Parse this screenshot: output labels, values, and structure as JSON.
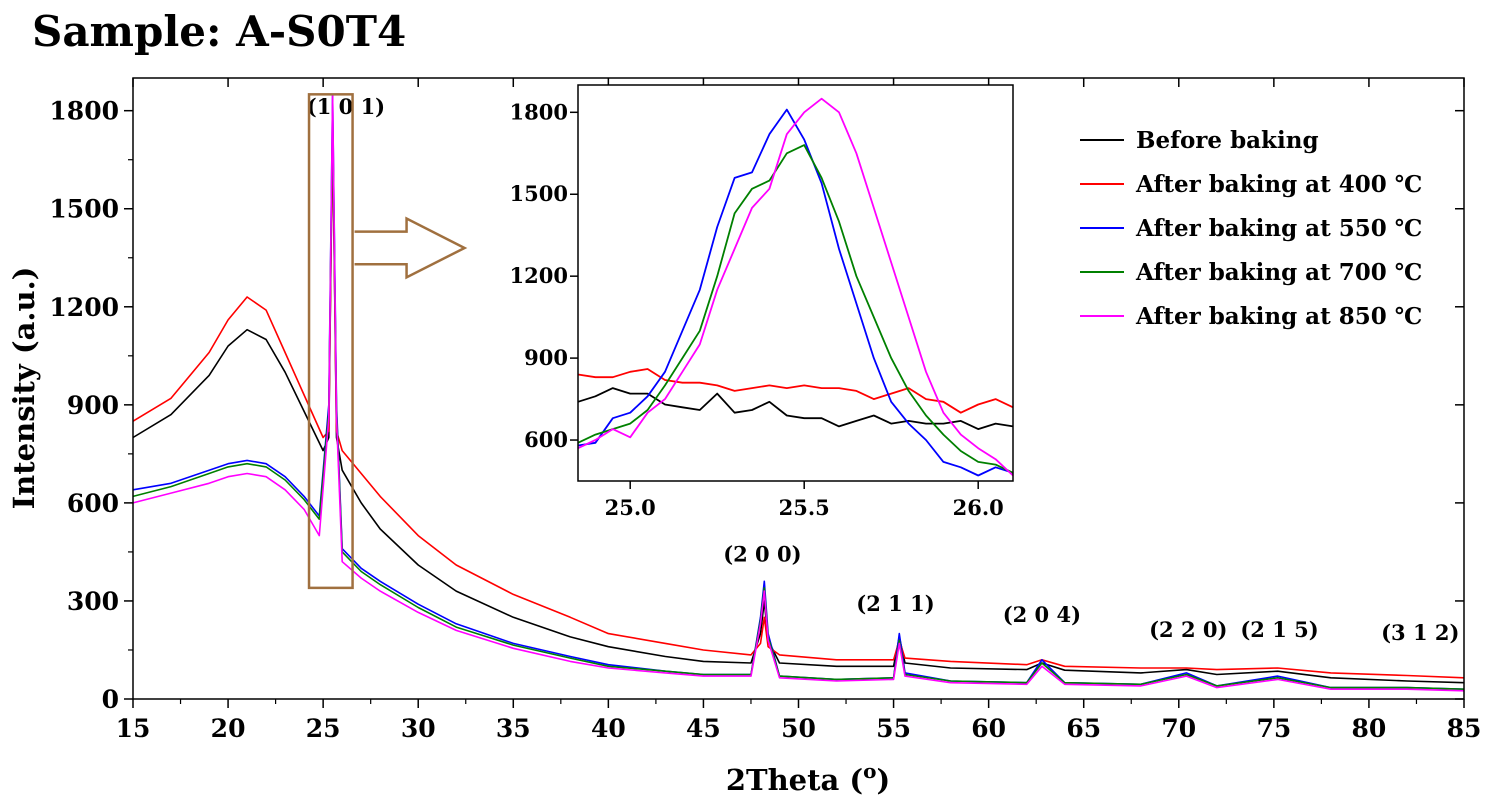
{
  "chart_data": [
    {
      "type": "line",
      "title": "Sample: A-S0T4",
      "xlabel": "2Theta (",
      "xlabel_superscript": "o",
      "xlabel_suffix": ")",
      "ylabel": "Intensity (a.u.)",
      "xlim": [
        15,
        85
      ],
      "ylim": [
        0,
        1900
      ],
      "x_ticks": [
        15,
        20,
        25,
        30,
        35,
        40,
        45,
        50,
        55,
        60,
        65,
        70,
        75,
        80,
        85
      ],
      "y_ticks": [
        0,
        300,
        600,
        900,
        1200,
        1500,
        1800
      ],
      "legend": {
        "placement": "top-right",
        "entries": [
          {
            "label": "Before baking",
            "color": "#000000"
          },
          {
            "label": "After baking at 400 ℃",
            "color": "#ff0000"
          },
          {
            "label": "After baking at 550 ℃",
            "color": "#0000ff"
          },
          {
            "label": "After baking at 700 ℃",
            "color": "#008000"
          },
          {
            "label": "After baking at 850 ℃",
            "color": "#ff00ff"
          }
        ]
      },
      "annotations": [
        {
          "text": "(1 0 1)",
          "x": 26.2,
          "y": 1790
        },
        {
          "text": "(2 0 0)",
          "x": 48.1,
          "y": 420
        },
        {
          "text": "(2 1 1)",
          "x": 55.1,
          "y": 270
        },
        {
          "text": "(2 0 4)",
          "x": 62.8,
          "y": 235
        },
        {
          "text": "(2 2 0)",
          "x": 70.5,
          "y": 190
        },
        {
          "text": "(2 1 5)",
          "x": 75.3,
          "y": 190
        },
        {
          "text": "(3 1 2)",
          "x": 82.7,
          "y": 180
        }
      ],
      "highlight_box": {
        "x_range": [
          24.1,
          26.6
        ],
        "y_range": [
          340,
          1850
        ]
      },
      "series": [
        {
          "name": "Before baking",
          "color": "#000000",
          "x": [
            15,
            17,
            19,
            20,
            21,
            22,
            23,
            24,
            25,
            25.3,
            25.5,
            25.7,
            26,
            27,
            28,
            30,
            32,
            35,
            38,
            40,
            43,
            45,
            47.5,
            48.0,
            48.2,
            48.4,
            49,
            52,
            55.0,
            55.3,
            55.6,
            58,
            62,
            62.8,
            64,
            68,
            70.4,
            72,
            75.2,
            78,
            82,
            85
          ],
          "y": [
            800,
            870,
            990,
            1080,
            1130,
            1100,
            1000,
            880,
            760,
            800,
            1750,
            800,
            700,
            600,
            520,
            410,
            330,
            250,
            190,
            160,
            130,
            115,
            110,
            200,
            300,
            180,
            110,
            100,
            100,
            190,
            110,
            95,
            90,
            110,
            88,
            80,
            90,
            75,
            85,
            65,
            55,
            50
          ]
        },
        {
          "name": "After baking at 400 ℃",
          "color": "#ff0000",
          "x": [
            15,
            17,
            19,
            20,
            21,
            22,
            23,
            24,
            25,
            25.3,
            25.5,
            25.7,
            26,
            27,
            28,
            30,
            32,
            35,
            38,
            40,
            43,
            45,
            47.5,
            48.0,
            48.2,
            48.4,
            49,
            52,
            55.0,
            55.3,
            55.6,
            58,
            62,
            62.8,
            64,
            68,
            70.4,
            72,
            75.2,
            78,
            82,
            85
          ],
          "y": [
            850,
            920,
            1060,
            1160,
            1230,
            1190,
            1060,
            930,
            800,
            820,
            1760,
            820,
            760,
            690,
            620,
            500,
            410,
            320,
            250,
            200,
            170,
            150,
            135,
            170,
            250,
            160,
            135,
            120,
            120,
            180,
            125,
            115,
            105,
            120,
            100,
            95,
            95,
            90,
            95,
            80,
            72,
            65
          ]
        },
        {
          "name": "After baking at 550 ℃",
          "color": "#0000ff",
          "x": [
            15,
            17,
            19,
            20,
            21,
            22,
            23,
            24,
            24.8,
            25.3,
            25.5,
            25.7,
            26,
            27,
            28,
            30,
            32,
            35,
            38,
            40,
            43,
            45,
            47.5,
            48.0,
            48.2,
            48.4,
            49,
            52,
            55.0,
            55.3,
            55.6,
            58,
            62,
            62.8,
            64,
            68,
            70.4,
            72,
            75.2,
            78,
            82,
            85
          ],
          "y": [
            640,
            660,
            700,
            720,
            730,
            720,
            680,
            620,
            560,
            900,
            1850,
            900,
            460,
            400,
            360,
            290,
            230,
            170,
            130,
            105,
            85,
            75,
            75,
            250,
            360,
            200,
            70,
            60,
            65,
            200,
            80,
            55,
            50,
            120,
            50,
            45,
            80,
            40,
            70,
            35,
            35,
            30
          ]
        },
        {
          "name": "After baking at 700 ℃",
          "color": "#008000",
          "x": [
            15,
            17,
            19,
            20,
            21,
            22,
            23,
            24,
            24.8,
            25.3,
            25.5,
            25.7,
            26,
            27,
            28,
            30,
            32,
            35,
            38,
            40,
            43,
            45,
            47.5,
            48.0,
            48.2,
            48.4,
            49,
            52,
            55.0,
            55.3,
            55.6,
            58,
            62,
            62.8,
            64,
            68,
            70.4,
            72,
            75.2,
            78,
            82,
            85
          ],
          "y": [
            620,
            650,
            690,
            710,
            720,
            710,
            670,
            610,
            550,
            880,
            1780,
            880,
            450,
            390,
            350,
            280,
            220,
            165,
            125,
            100,
            85,
            75,
            75,
            240,
            340,
            190,
            70,
            60,
            65,
            180,
            75,
            55,
            50,
            110,
            50,
            45,
            75,
            40,
            65,
            35,
            35,
            30
          ]
        },
        {
          "name": "After baking at 850 ℃",
          "color": "#ff00ff",
          "x": [
            15,
            17,
            19,
            20,
            21,
            22,
            23,
            24,
            24.8,
            25.3,
            25.5,
            25.7,
            26,
            27,
            28,
            30,
            32,
            35,
            38,
            40,
            43,
            45,
            47.5,
            48.0,
            48.2,
            48.4,
            49,
            52,
            55.0,
            55.3,
            55.6,
            58,
            62,
            62.8,
            64,
            68,
            70.4,
            72,
            75.2,
            78,
            82,
            85
          ],
          "y": [
            600,
            630,
            660,
            680,
            690,
            680,
            640,
            580,
            500,
            860,
            1850,
            860,
            420,
            370,
            330,
            265,
            210,
            155,
            115,
            95,
            80,
            70,
            70,
            230,
            330,
            180,
            65,
            55,
            60,
            170,
            70,
            50,
            45,
            100,
            45,
            40,
            70,
            35,
            60,
            30,
            30,
            25
          ]
        }
      ]
    },
    {
      "type": "line",
      "title": "",
      "xlabel": "",
      "ylabel": "",
      "xlim": [
        24.85,
        26.1
      ],
      "ylim": [
        450,
        1900
      ],
      "x_ticks": [
        25.0,
        25.5,
        26.0
      ],
      "x_tick_labels": [
        "25.0",
        "25.5",
        "26.0"
      ],
      "y_ticks": [
        600,
        900,
        1200,
        1500,
        1800
      ],
      "series": [
        {
          "name": "Before baking",
          "color": "#000000",
          "x": [
            24.85,
            24.9,
            24.95,
            25.0,
            25.05,
            25.1,
            25.15,
            25.2,
            25.25,
            25.3,
            25.35,
            25.4,
            25.45,
            25.5,
            25.55,
            25.6,
            25.65,
            25.7,
            25.75,
            25.8,
            25.85,
            25.9,
            25.95,
            26.0,
            26.05,
            26.1
          ],
          "y": [
            740,
            760,
            790,
            770,
            770,
            730,
            720,
            710,
            770,
            700,
            710,
            740,
            690,
            680,
            680,
            650,
            670,
            690,
            660,
            670,
            660,
            660,
            670,
            640,
            660,
            650
          ]
        },
        {
          "name": "After baking at 400 ℃",
          "color": "#ff0000",
          "x": [
            24.85,
            24.9,
            24.95,
            25.0,
            25.05,
            25.1,
            25.15,
            25.2,
            25.25,
            25.3,
            25.35,
            25.4,
            25.45,
            25.5,
            25.55,
            25.6,
            25.65,
            25.7,
            25.75,
            25.8,
            25.85,
            25.9,
            25.95,
            26.0,
            26.05,
            26.1
          ],
          "y": [
            840,
            830,
            830,
            850,
            860,
            820,
            810,
            810,
            800,
            780,
            790,
            800,
            790,
            800,
            790,
            790,
            780,
            750,
            770,
            790,
            750,
            740,
            700,
            730,
            750,
            720
          ]
        },
        {
          "name": "After baking at 550 ℃",
          "color": "#0000ff",
          "x": [
            24.85,
            24.9,
            24.95,
            25.0,
            25.05,
            25.1,
            25.15,
            25.2,
            25.25,
            25.3,
            25.35,
            25.4,
            25.45,
            25.5,
            25.55,
            25.6,
            25.65,
            25.7,
            25.75,
            25.8,
            25.85,
            25.9,
            25.95,
            26.0,
            26.05,
            26.1
          ],
          "y": [
            580,
            590,
            680,
            700,
            760,
            850,
            1000,
            1150,
            1380,
            1560,
            1580,
            1720,
            1810,
            1700,
            1540,
            1300,
            1100,
            900,
            740,
            660,
            600,
            520,
            500,
            470,
            500,
            480
          ]
        },
        {
          "name": "After baking at 700 ℃",
          "color": "#008000",
          "x": [
            24.85,
            24.9,
            24.95,
            25.0,
            25.05,
            25.1,
            25.15,
            25.2,
            25.25,
            25.3,
            25.35,
            25.4,
            25.45,
            25.5,
            25.55,
            25.6,
            25.65,
            25.7,
            25.75,
            25.8,
            25.85,
            25.9,
            25.95,
            26.0,
            26.05,
            26.1
          ],
          "y": [
            590,
            620,
            640,
            660,
            710,
            800,
            900,
            1000,
            1200,
            1430,
            1520,
            1550,
            1650,
            1680,
            1560,
            1400,
            1200,
            1050,
            900,
            780,
            690,
            620,
            560,
            520,
            510,
            480
          ]
        },
        {
          "name": "After baking at 850 ℃",
          "color": "#ff00ff",
          "x": [
            24.85,
            24.9,
            24.95,
            25.0,
            25.05,
            25.1,
            25.15,
            25.2,
            25.25,
            25.3,
            25.35,
            25.4,
            25.45,
            25.5,
            25.55,
            25.6,
            25.65,
            25.7,
            25.75,
            25.8,
            25.85,
            25.9,
            25.95,
            26.0,
            26.05,
            26.1
          ],
          "y": [
            570,
            600,
            640,
            610,
            700,
            750,
            850,
            950,
            1150,
            1300,
            1450,
            1520,
            1720,
            1800,
            1850,
            1800,
            1650,
            1450,
            1250,
            1050,
            850,
            700,
            620,
            570,
            530,
            470
          ]
        }
      ]
    }
  ]
}
